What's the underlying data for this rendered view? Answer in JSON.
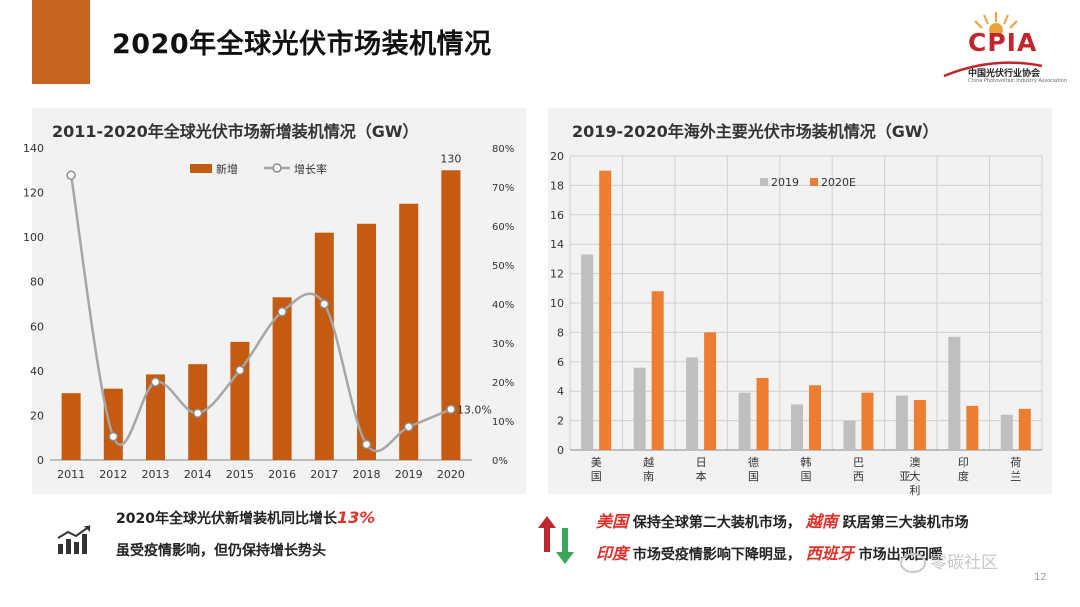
{
  "slide": {
    "title": "2020年全球光伏市场装机情况",
    "page_number": "12",
    "accent_color": "#c8641e"
  },
  "logo": {
    "name": "CPIA",
    "subtitle": "中国光伏行业协会",
    "subtitle_en": "China Photovoltaic Industry Association"
  },
  "watermark": "零碳社区",
  "chart_data": [
    {
      "type": "bar",
      "title": "2011-2020年全球光伏市场新增装机情况（GW）",
      "categories": [
        "2011",
        "2012",
        "2013",
        "2014",
        "2015",
        "2016",
        "2017",
        "2018",
        "2019",
        "2020"
      ],
      "series": [
        {
          "name": "新增",
          "type": "bar",
          "axis": "left",
          "color": "#c55a11",
          "values": [
            30,
            32,
            38.4,
            43,
            53,
            73,
            102,
            106,
            115,
            130
          ]
        },
        {
          "name": "增长率",
          "type": "line",
          "axis": "right",
          "color": "#a6a6a6",
          "values": [
            0.73,
            0.06,
            0.2,
            0.12,
            0.23,
            0.38,
            0.4,
            0.04,
            0.085,
            0.13
          ]
        }
      ],
      "y_left": {
        "range": [
          0,
          140
        ],
        "ticks": [
          "0",
          "20",
          "40",
          "60",
          "80",
          "100",
          "120",
          "140"
        ]
      },
      "y_right": {
        "range": [
          0,
          0.8
        ],
        "ticks": [
          "0%",
          "10%",
          "20%",
          "30%",
          "40%",
          "50%",
          "60%",
          "70%",
          "80%"
        ]
      },
      "data_labels": {
        "last_bar": "130",
        "last_rate": "13.0%"
      },
      "legend": "top-center",
      "grid": false
    },
    {
      "type": "bar",
      "title": "2019-2020年海外主要光伏市场装机情况（GW）",
      "categories": [
        [
          "美",
          "国"
        ],
        [
          "越",
          "南"
        ],
        [
          "日",
          "本"
        ],
        [
          "德",
          "国"
        ],
        [
          "韩",
          "国"
        ],
        [
          "巴",
          "西"
        ],
        [
          "澳",
          "亚",
          "大",
          "利"
        ],
        [
          "印",
          "度"
        ],
        [
          "荷",
          "兰"
        ]
      ],
      "series": [
        {
          "name": "2019",
          "color": "#bfbfbf",
          "values": [
            13.3,
            5.6,
            6.3,
            3.9,
            3.1,
            2.0,
            3.7,
            7.7,
            2.4
          ]
        },
        {
          "name": "2020E",
          "color": "#ed7d31",
          "values": [
            19.0,
            10.8,
            8.0,
            4.9,
            4.4,
            3.9,
            3.4,
            3.0,
            2.8
          ]
        }
      ],
      "y": {
        "range": [
          0,
          20
        ],
        "ticks": [
          "0",
          "2",
          "4",
          "6",
          "8",
          "10",
          "12",
          "14",
          "16",
          "18",
          "20"
        ]
      },
      "legend": "top-center",
      "grid": true
    }
  ],
  "notes": {
    "left": {
      "line1_prefix": "2020年全球光伏新增装机同比增长",
      "line1_highlight": "13%",
      "line2": "虽受疫情影响，但仍保持增长势头"
    },
    "right": {
      "line1_highlight1": "美国",
      "line1_text1": "保持全球第二大装机市场，",
      "line1_highlight2": "越南",
      "line1_text2": "跃居第三大装机市场",
      "line2_highlight1": "印度",
      "line2_text1": "市场受疫情影响下降明显，",
      "line2_highlight2": "西班牙",
      "line2_text2": "市场出现回暖"
    }
  }
}
